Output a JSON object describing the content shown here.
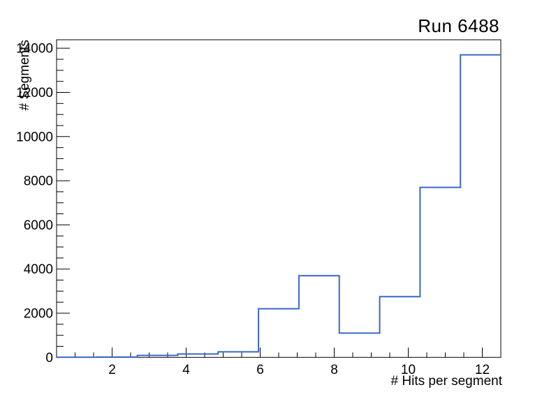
{
  "figure": {
    "background_color": "#ffffff",
    "frame_color": "#000000"
  },
  "axes": {
    "x": {
      "title": "# Hits per segment",
      "major_ticks": [
        2,
        4,
        6,
        8,
        10,
        12
      ],
      "tick_labels": [
        "2",
        "4",
        "6",
        "8",
        "10",
        "12"
      ],
      "minor_step": 0.5,
      "minor_range": [
        1.0,
        12.0
      ]
    },
    "y": {
      "title": "# Segments",
      "major_ticks": [
        0,
        2000,
        4000,
        6000,
        8000,
        10000,
        12000,
        14000
      ],
      "tick_labels": [
        "0",
        "2000",
        "4000",
        "6000",
        "8000",
        "10000",
        "12000",
        "14000"
      ],
      "minor_step": 500
    }
  },
  "chart_data": {
    "type": "bar",
    "style": "step-histogram-outline",
    "title": "Run 6488",
    "xlabel": "# Hits per segment",
    "ylabel": "# Segments",
    "xlim": [
      0.5,
      12.5
    ],
    "ylim": [
      0,
      14385
    ],
    "n_bins": 11,
    "bin_edges": [
      0.5,
      1.5909,
      2.6818,
      3.7727,
      4.8636,
      5.9545,
      7.0455,
      8.1364,
      9.2273,
      10.3182,
      11.4091,
      12.5
    ],
    "values": [
      5,
      15,
      90,
      150,
      250,
      2200,
      3700,
      1100,
      2750,
      7700,
      13700
    ],
    "line_color": "#3a67c6",
    "line_width": 2,
    "grid": false,
    "legend": null
  }
}
